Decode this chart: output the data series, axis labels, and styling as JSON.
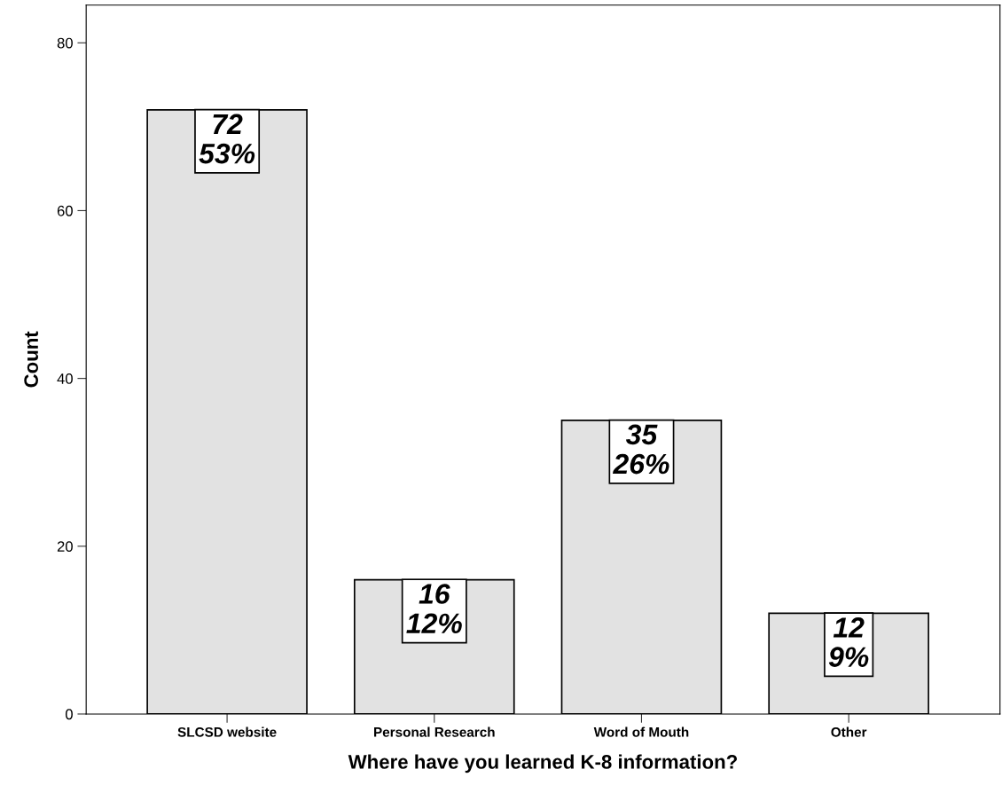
{
  "chart_data": {
    "type": "bar",
    "xlabel": "Where have you learned K-8 information?",
    "ylabel": "Count",
    "categories": [
      "SLCSD website",
      "Personal Research",
      "Word of Mouth",
      "Other"
    ],
    "values": [
      72,
      16,
      35,
      12
    ],
    "value_labels": [
      "72\n53%",
      "16\n12%",
      "35\n26%",
      "12\n9%"
    ],
    "color": "#e2e2e2",
    "ylim": [
      0,
      84.5
    ],
    "yticks": [
      0,
      20,
      40,
      60,
      80
    ],
    "grid": false,
    "legend": false
  }
}
